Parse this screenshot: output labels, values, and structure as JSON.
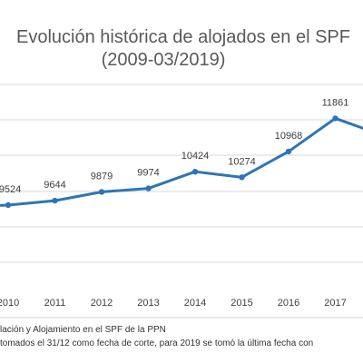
{
  "chart_data": {
    "type": "line",
    "title": "Evolución histórica de alojados en el SPF",
    "subtitle": "(2009-03/2019)",
    "categories": [
      "2010",
      "2011",
      "2012",
      "2013",
      "2014",
      "2015",
      "2016",
      "2017"
    ],
    "series": [
      {
        "values": [
          9524,
          9644,
          9879,
          9974,
          10424,
          10274,
          10968,
          11861
        ]
      }
    ],
    "grid": true,
    "line_color": "#2E75B6"
  },
  "footnotes": [
    "lación y Alojamiento en el SPF de la PPN",
    "tomados el 31/12 como fecha de corte, para 2019 se tomó la última fecha con"
  ]
}
